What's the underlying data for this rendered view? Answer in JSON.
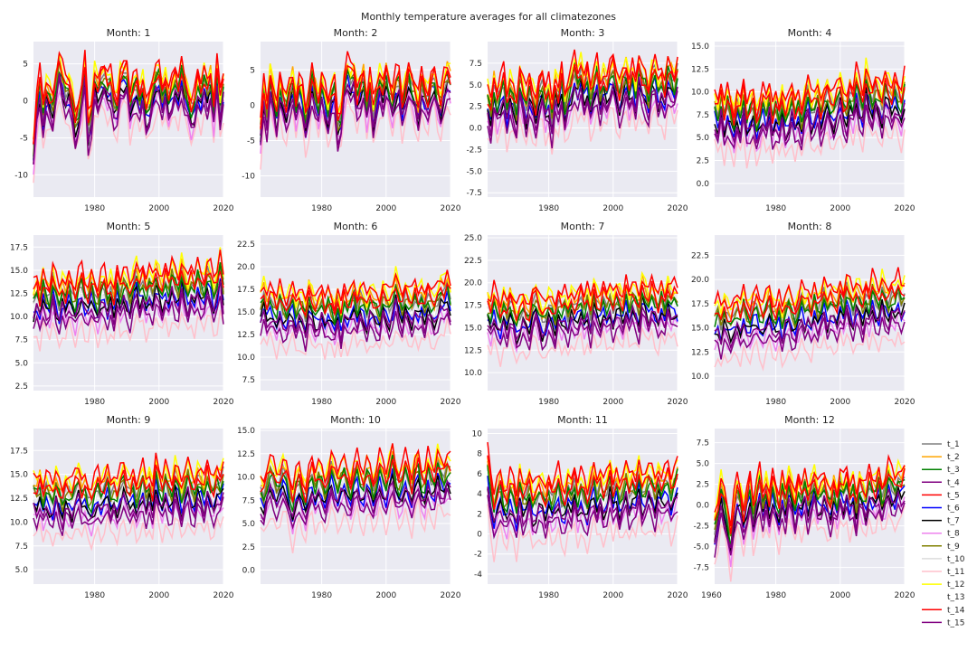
{
  "figure_title": "Monthly temperature averages for all climatezones",
  "legend": [
    "t_1",
    "t_2",
    "t_3",
    "t_4",
    "t_5",
    "t_6",
    "t_7",
    "t_8",
    "t_9",
    "t_10",
    "t_11",
    "t_12",
    "t_13",
    "t_14",
    "t_15"
  ],
  "series_colors": [
    "#808080",
    "#ffa500",
    "#008000",
    "#800080",
    "#ff0000",
    "#0000ff",
    "#000000",
    "#ee82ee",
    "#808000",
    "#dcdcdc",
    "#ffc0cb",
    "#ffff00",
    "#ffffff",
    "#ff0000",
    "#800080"
  ],
  "chart_data": [
    {
      "type": "line",
      "title": "Month: 1",
      "x_range": [
        1961,
        2020
      ],
      "ylim": [
        -13,
        8
      ],
      "yticks": [
        -10,
        -5,
        0,
        5
      ],
      "xticks": [
        1980,
        2000,
        2020
      ],
      "base": [
        -7.0,
        -1.0,
        2.0,
        -2.0,
        1.0,
        0.0,
        -1.0,
        2.0,
        4.5,
        2.5,
        1.0,
        1.5,
        -0.5,
        -3.5,
        -2.0,
        0.5,
        4.0,
        -4.0,
        -2.0,
        2.5,
        1.0,
        2.5,
        3.0,
        1.5,
        2.0,
        -0.5,
        -1.0,
        2.5,
        3.0,
        3.5,
        -1.0,
        1.0,
        2.0,
        0.0,
        1.5,
        -2.0,
        -1.0,
        1.0,
        2.5,
        3.0,
        0.5,
        2.0,
        -0.5,
        1.0,
        2.5,
        1.0,
        3.5,
        1.5,
        0.0,
        -2.0,
        -1.0,
        2.0,
        0.5,
        2.5,
        1.0,
        2.5,
        -1.5,
        3.5,
        -1.0,
        2.0
      ],
      "offset": [
        0.5,
        1.2,
        0.2,
        -1.5,
        0.8,
        -1.0,
        -1.2,
        -2.2,
        0.3,
        -0.2,
        -4.0,
        1.8,
        0.0,
        2.0,
        -2.5
      ],
      "amp": 2.0
    },
    {
      "type": "line",
      "title": "Month: 2",
      "x_range": [
        1961,
        2020
      ],
      "ylim": [
        -13,
        9
      ],
      "yticks": [
        -10,
        -5,
        0,
        5
      ],
      "xticks": [
        1980,
        2000,
        2020
      ],
      "base": [
        -4.0,
        1.5,
        -1.5,
        3.5,
        1.0,
        -2.0,
        2.5,
        0.5,
        -1.0,
        1.5,
        3.0,
        -0.5,
        2.0,
        1.0,
        -2.5,
        0.0,
        3.5,
        1.5,
        -0.5,
        2.5,
        0.5,
        -1.5,
        1.0,
        2.0,
        -3.0,
        -2.0,
        2.5,
        4.5,
        3.5,
        4.0,
        0.5,
        2.0,
        3.5,
        -0.5,
        2.5,
        -1.5,
        1.0,
        3.0,
        1.5,
        4.0,
        2.0,
        0.0,
        2.5,
        3.5,
        -0.5,
        1.5,
        4.0,
        2.5,
        1.0,
        -1.0,
        3.0,
        1.5,
        0.0,
        2.5,
        3.5,
        1.0,
        -0.5,
        2.5,
        4.0,
        3.0
      ],
      "offset": [
        0.5,
        1.2,
        0.2,
        -1.5,
        0.8,
        -1.0,
        -1.2,
        -2.2,
        0.3,
        -0.2,
        -4.0,
        1.8,
        0.0,
        2.0,
        -2.5
      ],
      "amp": 2.2
    },
    {
      "type": "line",
      "title": "Month: 3",
      "x_range": [
        1961,
        2020
      ],
      "ylim": [
        -8,
        10
      ],
      "yticks": [
        -7.5,
        -5.0,
        -2.5,
        0.0,
        2.5,
        5.0,
        7.5
      ],
      "xticks": [
        1980,
        2000,
        2020
      ],
      "base": [
        3.0,
        1.5,
        4.5,
        2.5,
        3.5,
        5.0,
        2.0,
        4.0,
        3.0,
        1.5,
        5.5,
        3.5,
        2.0,
        4.5,
        3.0,
        1.5,
        4.0,
        5.0,
        2.5,
        3.5,
        1.0,
        4.5,
        3.0,
        5.5,
        2.0,
        3.5,
        4.5,
        6.5,
        5.0,
        6.0,
        4.0,
        5.5,
        3.0,
        4.5,
        6.0,
        3.5,
        5.0,
        4.0,
        5.5,
        6.5,
        4.5,
        3.0,
        5.0,
        6.0,
        4.0,
        5.5,
        3.5,
        6.5,
        5.0,
        4.5,
        3.0,
        5.5,
        6.0,
        4.0,
        5.0,
        3.5,
        6.0,
        5.5,
        4.5,
        6.0
      ],
      "offset": [
        0.5,
        1.2,
        0.2,
        -1.5,
        0.8,
        -1.0,
        -1.2,
        -2.2,
        0.3,
        -0.2,
        -4.0,
        1.8,
        0.0,
        2.0,
        -2.5
      ],
      "amp": 1.8
    },
    {
      "type": "line",
      "title": "Month: 4",
      "x_range": [
        1961,
        2020
      ],
      "ylim": [
        -1.5,
        15.5
      ],
      "yticks": [
        0.0,
        2.5,
        5.0,
        7.5,
        10.0,
        12.5,
        15.0
      ],
      "xticks": [
        1980,
        2000,
        2020
      ],
      "base": [
        8.0,
        7.0,
        9.0,
        6.5,
        8.5,
        7.5,
        6.0,
        8.0,
        7.0,
        9.5,
        6.5,
        7.5,
        8.5,
        6.0,
        7.0,
        8.5,
        7.5,
        9.0,
        6.5,
        8.0,
        7.0,
        8.5,
        6.5,
        7.5,
        9.0,
        7.0,
        8.0,
        6.5,
        8.5,
        9.5,
        7.5,
        8.0,
        9.0,
        7.0,
        8.5,
        9.5,
        8.0,
        7.5,
        9.0,
        10.0,
        8.0,
        7.5,
        9.5,
        8.5,
        10.5,
        9.0,
        8.0,
        11.0,
        9.5,
        8.5,
        10.0,
        9.0,
        8.0,
        10.5,
        9.5,
        8.5,
        10.0,
        9.0,
        8.0,
        10.0
      ],
      "offset": [
        0.5,
        1.2,
        0.2,
        -1.5,
        0.8,
        -1.0,
        -1.2,
        -2.2,
        0.3,
        -0.2,
        -4.0,
        1.8,
        0.0,
        2.0,
        -2.5
      ],
      "amp": 1.6
    },
    {
      "type": "line",
      "title": "Month: 5",
      "x_range": [
        1961,
        2020
      ],
      "ylim": [
        2,
        18.8
      ],
      "yticks": [
        2.5,
        5.0,
        7.5,
        10.0,
        12.5,
        15.0,
        17.5
      ],
      "xticks": [
        1980,
        2000,
        2020
      ],
      "base": [
        11.5,
        12.5,
        11.0,
        13.0,
        12.0,
        11.5,
        13.5,
        12.0,
        11.0,
        12.5,
        11.5,
        13.0,
        12.0,
        11.0,
        12.5,
        13.5,
        12.0,
        11.5,
        13.0,
        12.0,
        11.0,
        12.5,
        13.0,
        11.5,
        12.5,
        11.0,
        13.5,
        12.0,
        13.0,
        12.5,
        11.5,
        13.0,
        14.0,
        12.5,
        13.5,
        12.0,
        13.0,
        12.5,
        14.0,
        13.0,
        12.0,
        13.5,
        12.5,
        14.0,
        13.0,
        12.5,
        14.5,
        13.0,
        12.0,
        13.5,
        12.5,
        14.0,
        13.0,
        12.5,
        14.0,
        13.5,
        12.0,
        13.0,
        15.0,
        12.5
      ],
      "offset": [
        0.5,
        1.2,
        0.2,
        -1.5,
        0.8,
        -1.0,
        -1.2,
        -2.2,
        0.3,
        -0.2,
        -4.0,
        1.8,
        0.0,
        2.0,
        -2.5
      ],
      "amp": 1.6
    },
    {
      "type": "line",
      "title": "Month: 6",
      "x_range": [
        1961,
        2020
      ],
      "ylim": [
        6.3,
        23.5
      ],
      "yticks": [
        7.5,
        10.0,
        12.5,
        15.0,
        17.5,
        20.0,
        22.5
      ],
      "xticks": [
        1980,
        2000,
        2020
      ],
      "base": [
        15.5,
        16.5,
        15.0,
        16.0,
        15.5,
        14.5,
        16.0,
        15.0,
        14.5,
        15.5,
        16.0,
        14.5,
        15.5,
        15.0,
        14.0,
        16.5,
        15.5,
        14.5,
        15.0,
        16.0,
        14.5,
        15.5,
        15.0,
        14.0,
        15.5,
        13.5,
        16.0,
        15.0,
        15.5,
        16.5,
        15.0,
        16.0,
        15.5,
        14.5,
        16.0,
        15.5,
        15.0,
        14.5,
        16.5,
        15.5,
        15.0,
        16.0,
        17.5,
        16.0,
        15.0,
        16.5,
        15.5,
        15.0,
        16.5,
        15.5,
        16.0,
        15.0,
        16.5,
        15.5,
        15.0,
        16.0,
        17.0,
        16.5,
        17.5,
        16.0
      ],
      "offset": [
        0.5,
        1.2,
        0.2,
        -1.5,
        0.8,
        -1.0,
        -1.2,
        -2.2,
        0.3,
        -0.2,
        -4.0,
        1.8,
        0.0,
        2.0,
        -2.5
      ],
      "amp": 1.5
    },
    {
      "type": "line",
      "title": "Month: 7",
      "x_range": [
        1961,
        2020
      ],
      "ylim": [
        8,
        25.3
      ],
      "yticks": [
        10.0,
        12.5,
        15.0,
        17.5,
        20.0,
        22.5,
        25.0
      ],
      "xticks": [
        1980,
        2000,
        2020
      ],
      "base": [
        17.0,
        16.0,
        17.5,
        16.5,
        15.5,
        17.0,
        16.0,
        17.5,
        16.5,
        15.0,
        16.0,
        17.0,
        16.0,
        15.5,
        17.5,
        18.0,
        16.5,
        15.5,
        16.0,
        17.0,
        16.5,
        15.5,
        17.5,
        16.5,
        17.0,
        16.0,
        17.5,
        16.5,
        17.0,
        18.0,
        16.5,
        17.5,
        16.0,
        18.5,
        17.0,
        16.5,
        18.0,
        17.0,
        17.5,
        16.5,
        18.0,
        17.5,
        16.5,
        18.5,
        17.0,
        18.0,
        17.5,
        16.5,
        19.0,
        18.0,
        17.0,
        18.5,
        17.5,
        16.5,
        18.0,
        17.0,
        18.5,
        17.5,
        18.0,
        17.5
      ],
      "offset": [
        0.5,
        1.2,
        0.2,
        -1.5,
        0.8,
        -1.0,
        -1.2,
        -2.2,
        0.3,
        -0.2,
        -4.0,
        1.8,
        0.0,
        2.0,
        -2.5
      ],
      "amp": 1.5
    },
    {
      "type": "line",
      "title": "Month: 8",
      "x_range": [
        1961,
        2020
      ],
      "ylim": [
        8.5,
        24.6
      ],
      "yticks": [
        10.0,
        12.5,
        15.0,
        17.5,
        20.0,
        22.5
      ],
      "xticks": [
        1980,
        2000,
        2020
      ],
      "base": [
        15.5,
        16.0,
        15.0,
        16.5,
        15.5,
        15.0,
        16.0,
        16.5,
        15.5,
        17.0,
        16.0,
        15.5,
        16.5,
        17.0,
        16.0,
        15.5,
        16.5,
        17.5,
        16.0,
        15.5,
        16.5,
        15.0,
        16.5,
        17.0,
        16.0,
        15.5,
        16.5,
        17.5,
        16.5,
        17.0,
        16.0,
        17.5,
        16.5,
        17.0,
        18.0,
        16.5,
        17.5,
        17.0,
        16.5,
        18.0,
        17.0,
        18.5,
        17.5,
        16.5,
        18.0,
        17.5,
        16.5,
        18.0,
        17.0,
        18.5,
        17.5,
        17.0,
        18.5,
        17.5,
        17.0,
        18.0,
        17.5,
        18.5,
        17.5,
        18.0
      ],
      "offset": [
        0.5,
        1.2,
        0.2,
        -1.5,
        0.8,
        -1.0,
        -1.2,
        -2.2,
        0.3,
        -0.2,
        -4.0,
        1.8,
        0.0,
        2.0,
        -2.5
      ],
      "amp": 1.4
    },
    {
      "type": "line",
      "title": "Month: 9",
      "x_range": [
        1961,
        2020
      ],
      "ylim": [
        3.5,
        19.8
      ],
      "yticks": [
        5.0,
        7.5,
        10.0,
        12.5,
        15.0,
        17.5
      ],
      "xticks": [
        1980,
        2000,
        2020
      ],
      "base": [
        13.0,
        12.5,
        13.5,
        12.0,
        13.0,
        12.5,
        12.0,
        13.5,
        12.5,
        11.5,
        13.0,
        12.5,
        12.0,
        13.5,
        14.0,
        12.5,
        13.0,
        12.0,
        11.5,
        12.5,
        13.5,
        12.5,
        13.0,
        14.0,
        12.5,
        13.0,
        12.0,
        13.5,
        14.5,
        13.0,
        12.5,
        13.5,
        12.0,
        13.0,
        14.0,
        12.5,
        13.5,
        12.0,
        15.0,
        13.5,
        12.5,
        14.0,
        13.0,
        12.5,
        14.5,
        13.5,
        12.0,
        13.5,
        14.5,
        13.0,
        12.5,
        14.0,
        13.5,
        12.5,
        14.5,
        13.0,
        12.5,
        14.0,
        13.5,
        14.5
      ],
      "offset": [
        0.5,
        1.2,
        0.2,
        -1.5,
        0.8,
        -1.0,
        -1.2,
        -2.2,
        0.3,
        -0.2,
        -4.0,
        1.8,
        0.0,
        2.0,
        -2.5
      ],
      "amp": 1.4
    },
    {
      "type": "line",
      "title": "Month: 10",
      "x_range": [
        1961,
        2020
      ],
      "ylim": [
        -1.5,
        15.2
      ],
      "yticks": [
        0.0,
        2.5,
        5.0,
        7.5,
        10.0,
        12.5,
        15.0
      ],
      "xticks": [
        1980,
        2000,
        2020
      ],
      "base": [
        8.0,
        7.5,
        9.0,
        10.0,
        9.5,
        8.5,
        9.0,
        10.0,
        9.5,
        8.0,
        6.5,
        8.5,
        9.5,
        8.0,
        7.0,
        9.0,
        10.0,
        8.5,
        9.5,
        9.0,
        8.0,
        9.0,
        10.5,
        9.5,
        8.5,
        9.5,
        10.0,
        9.0,
        8.0,
        9.5,
        10.5,
        9.0,
        8.5,
        10.0,
        9.5,
        8.0,
        9.0,
        10.5,
        9.5,
        8.5,
        10.0,
        11.5,
        9.5,
        8.5,
        9.0,
        10.5,
        9.5,
        8.0,
        10.0,
        11.0,
        9.0,
        8.5,
        10.5,
        9.5,
        9.0,
        11.0,
        10.0,
        9.5,
        10.5,
        10.0
      ],
      "offset": [
        0.5,
        1.2,
        0.2,
        -1.5,
        0.8,
        -1.0,
        -1.2,
        -2.2,
        0.3,
        -0.2,
        -4.0,
        1.8,
        0.0,
        2.0,
        -2.5
      ],
      "amp": 1.4
    },
    {
      "type": "line",
      "title": "Month: 11",
      "x_range": [
        1961,
        2020
      ],
      "ylim": [
        -5,
        10.5
      ],
      "yticks": [
        -4,
        -2,
        0,
        2,
        4,
        6,
        8,
        10
      ],
      "xticks": [
        1980,
        2000,
        2020
      ],
      "base": [
        6.5,
        4.0,
        2.0,
        3.5,
        4.5,
        3.0,
        2.5,
        4.0,
        3.5,
        2.0,
        4.5,
        3.0,
        3.5,
        4.5,
        2.5,
        3.0,
        4.0,
        3.5,
        2.5,
        4.0,
        3.0,
        3.5,
        4.5,
        3.0,
        2.5,
        4.0,
        3.5,
        5.0,
        3.0,
        4.0,
        3.5,
        2.5,
        4.0,
        5.0,
        3.5,
        4.5,
        3.0,
        4.0,
        5.5,
        3.5,
        4.5,
        3.0,
        4.0,
        5.0,
        3.5,
        4.5,
        4.0,
        5.5,
        3.5,
        4.0,
        5.0,
        4.5,
        3.5,
        5.0,
        4.0,
        4.5,
        5.0,
        3.5,
        4.5,
        5.5
      ],
      "offset": [
        0.5,
        1.2,
        0.2,
        -1.5,
        0.8,
        -1.0,
        -1.2,
        -2.2,
        0.3,
        -0.2,
        -4.0,
        1.8,
        0.0,
        2.0,
        -2.5
      ],
      "amp": 1.4
    },
    {
      "type": "line",
      "title": "Month: 12",
      "x_range": [
        1961,
        2020
      ],
      "ylim": [
        -9.5,
        9.2
      ],
      "yticks": [
        -7.5,
        -5.0,
        -2.5,
        0.0,
        2.5,
        5.0,
        7.5
      ],
      "xticks": [
        1960,
        1980,
        2000,
        2020
      ],
      "base": [
        -3.0,
        -1.0,
        1.5,
        0.0,
        -2.0,
        -4.5,
        -1.0,
        1.5,
        0.5,
        -2.0,
        0.0,
        2.0,
        -1.5,
        0.5,
        2.5,
        0.0,
        1.5,
        -0.5,
        2.0,
        0.5,
        -1.0,
        1.5,
        0.0,
        2.5,
        1.0,
        -1.0,
        1.5,
        0.5,
        2.0,
        0.0,
        1.5,
        2.5,
        0.5,
        1.0,
        2.0,
        0.5,
        -0.5,
        1.5,
        0.0,
        2.0,
        1.0,
        2.5,
        0.5,
        1.5,
        -0.5,
        2.0,
        1.0,
        0.0,
        2.5,
        1.5,
        1.0,
        2.5,
        0.5,
        1.5,
        3.0,
        2.0,
        1.5,
        2.5,
        2.0,
        3.0
      ],
      "offset": [
        0.5,
        1.2,
        0.2,
        -1.5,
        0.8,
        -1.0,
        -1.2,
        -2.2,
        0.3,
        -0.2,
        -4.0,
        1.8,
        0.0,
        2.0,
        -2.5
      ],
      "amp": 1.8
    }
  ]
}
